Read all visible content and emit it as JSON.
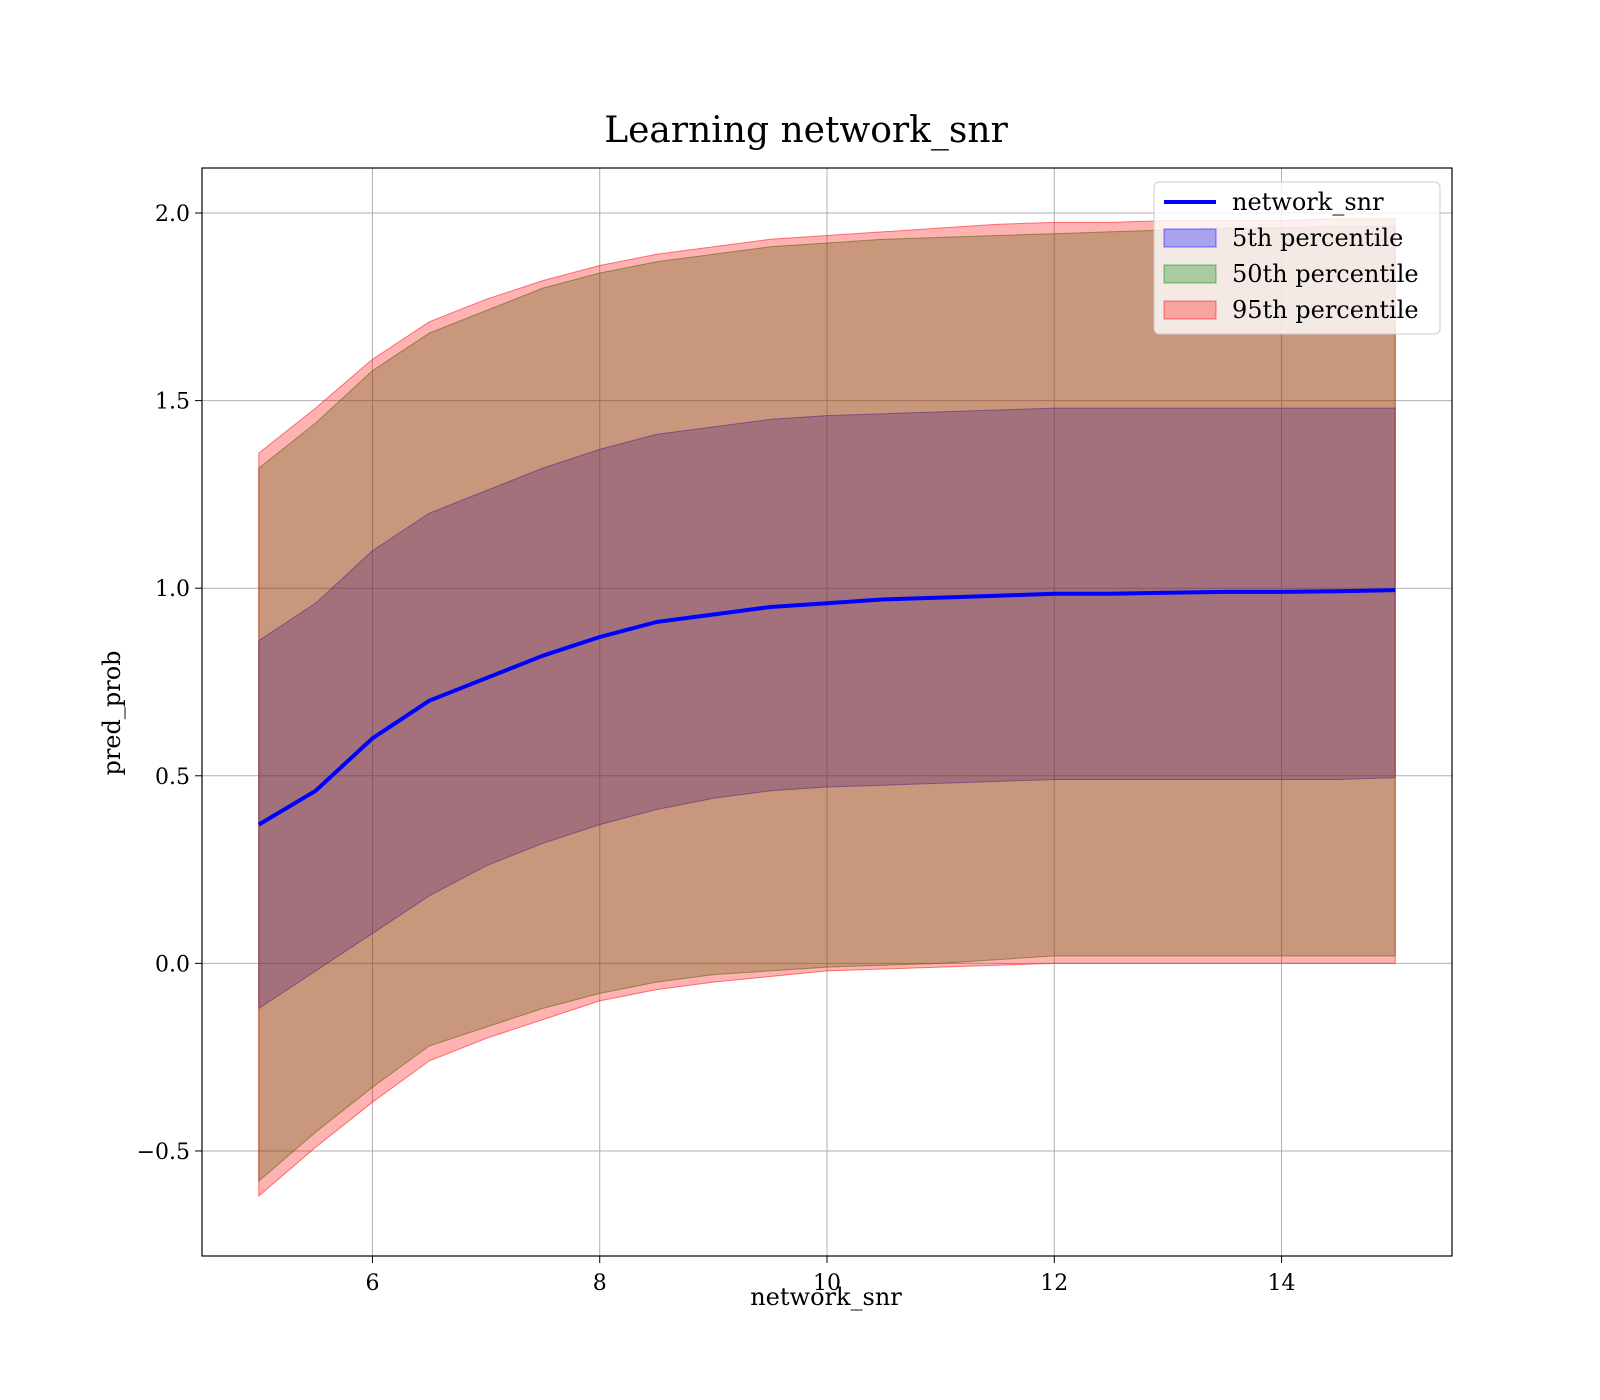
{
  "chart_data": {
    "type": "line",
    "title": "Learning network_snr",
    "xlabel": "network_snr",
    "ylabel": "pred_prob",
    "xlim": [
      4.5,
      15.5
    ],
    "ylim": [
      -0.78,
      2.12
    ],
    "xticks": [
      6,
      8,
      10,
      12,
      14
    ],
    "xtick_labels": [
      "6",
      "8",
      "10",
      "12",
      "14"
    ],
    "yticks": [
      -0.5,
      0.0,
      0.5,
      1.0,
      1.5,
      2.0
    ],
    "ytick_labels": [
      "−0.5",
      "0.0",
      "0.5",
      "1.0",
      "1.5",
      "2.0"
    ],
    "grid": true,
    "legend_position": "top-right",
    "x": [
      5.0,
      5.5,
      6.0,
      6.5,
      7.0,
      7.5,
      8.0,
      8.5,
      9.0,
      9.5,
      10.0,
      10.5,
      11.0,
      11.5,
      12.0,
      12.5,
      13.0,
      13.5,
      14.0,
      14.5,
      15.0
    ],
    "line": {
      "name": "network_snr",
      "color": "#0000ff",
      "values": [
        0.37,
        0.46,
        0.6,
        0.7,
        0.76,
        0.82,
        0.87,
        0.91,
        0.93,
        0.95,
        0.96,
        0.97,
        0.975,
        0.98,
        0.985,
        0.985,
        0.988,
        0.99,
        0.99,
        0.992,
        0.995
      ]
    },
    "bands": [
      {
        "name": "5th percentile",
        "color": "#0000ff",
        "alpha": 0.3,
        "lower": [
          -0.12,
          -0.02,
          0.08,
          0.18,
          0.26,
          0.32,
          0.37,
          0.41,
          0.44,
          0.46,
          0.47,
          0.475,
          0.48,
          0.485,
          0.49,
          0.49,
          0.49,
          0.49,
          0.49,
          0.49,
          0.495
        ],
        "upper": [
          0.86,
          0.96,
          1.1,
          1.2,
          1.26,
          1.32,
          1.37,
          1.41,
          1.43,
          1.45,
          1.46,
          1.465,
          1.47,
          1.475,
          1.48,
          1.48,
          1.48,
          1.48,
          1.48,
          1.48,
          1.48
        ]
      },
      {
        "name": "50th percentile",
        "color": "#008000",
        "alpha": 0.3,
        "lower": [
          -0.58,
          -0.45,
          -0.33,
          -0.22,
          -0.17,
          -0.12,
          -0.08,
          -0.05,
          -0.03,
          -0.02,
          -0.01,
          -0.005,
          0.0,
          0.01,
          0.02,
          0.02,
          0.02,
          0.02,
          0.02,
          0.02,
          0.02
        ],
        "upper": [
          1.32,
          1.44,
          1.58,
          1.68,
          1.74,
          1.8,
          1.84,
          1.87,
          1.89,
          1.91,
          1.92,
          1.93,
          1.935,
          1.94,
          1.945,
          1.95,
          1.955,
          1.96,
          1.96,
          1.965,
          1.965
        ]
      },
      {
        "name": "95th percentile",
        "color": "#ff0000",
        "alpha": 0.3,
        "lower": [
          -0.62,
          -0.49,
          -0.37,
          -0.26,
          -0.2,
          -0.15,
          -0.1,
          -0.07,
          -0.05,
          -0.035,
          -0.02,
          -0.015,
          -0.01,
          -0.005,
          0.0,
          0.0,
          0.0,
          0.0,
          0.0,
          0.0,
          0.0
        ],
        "upper": [
          1.36,
          1.48,
          1.61,
          1.71,
          1.77,
          1.82,
          1.86,
          1.89,
          1.91,
          1.93,
          1.94,
          1.95,
          1.96,
          1.97,
          1.975,
          1.975,
          1.98,
          1.98,
          1.98,
          1.985,
          1.985
        ]
      }
    ],
    "legend": [
      "network_snr",
      "5th percentile",
      "50th percentile",
      "95th percentile"
    ]
  }
}
